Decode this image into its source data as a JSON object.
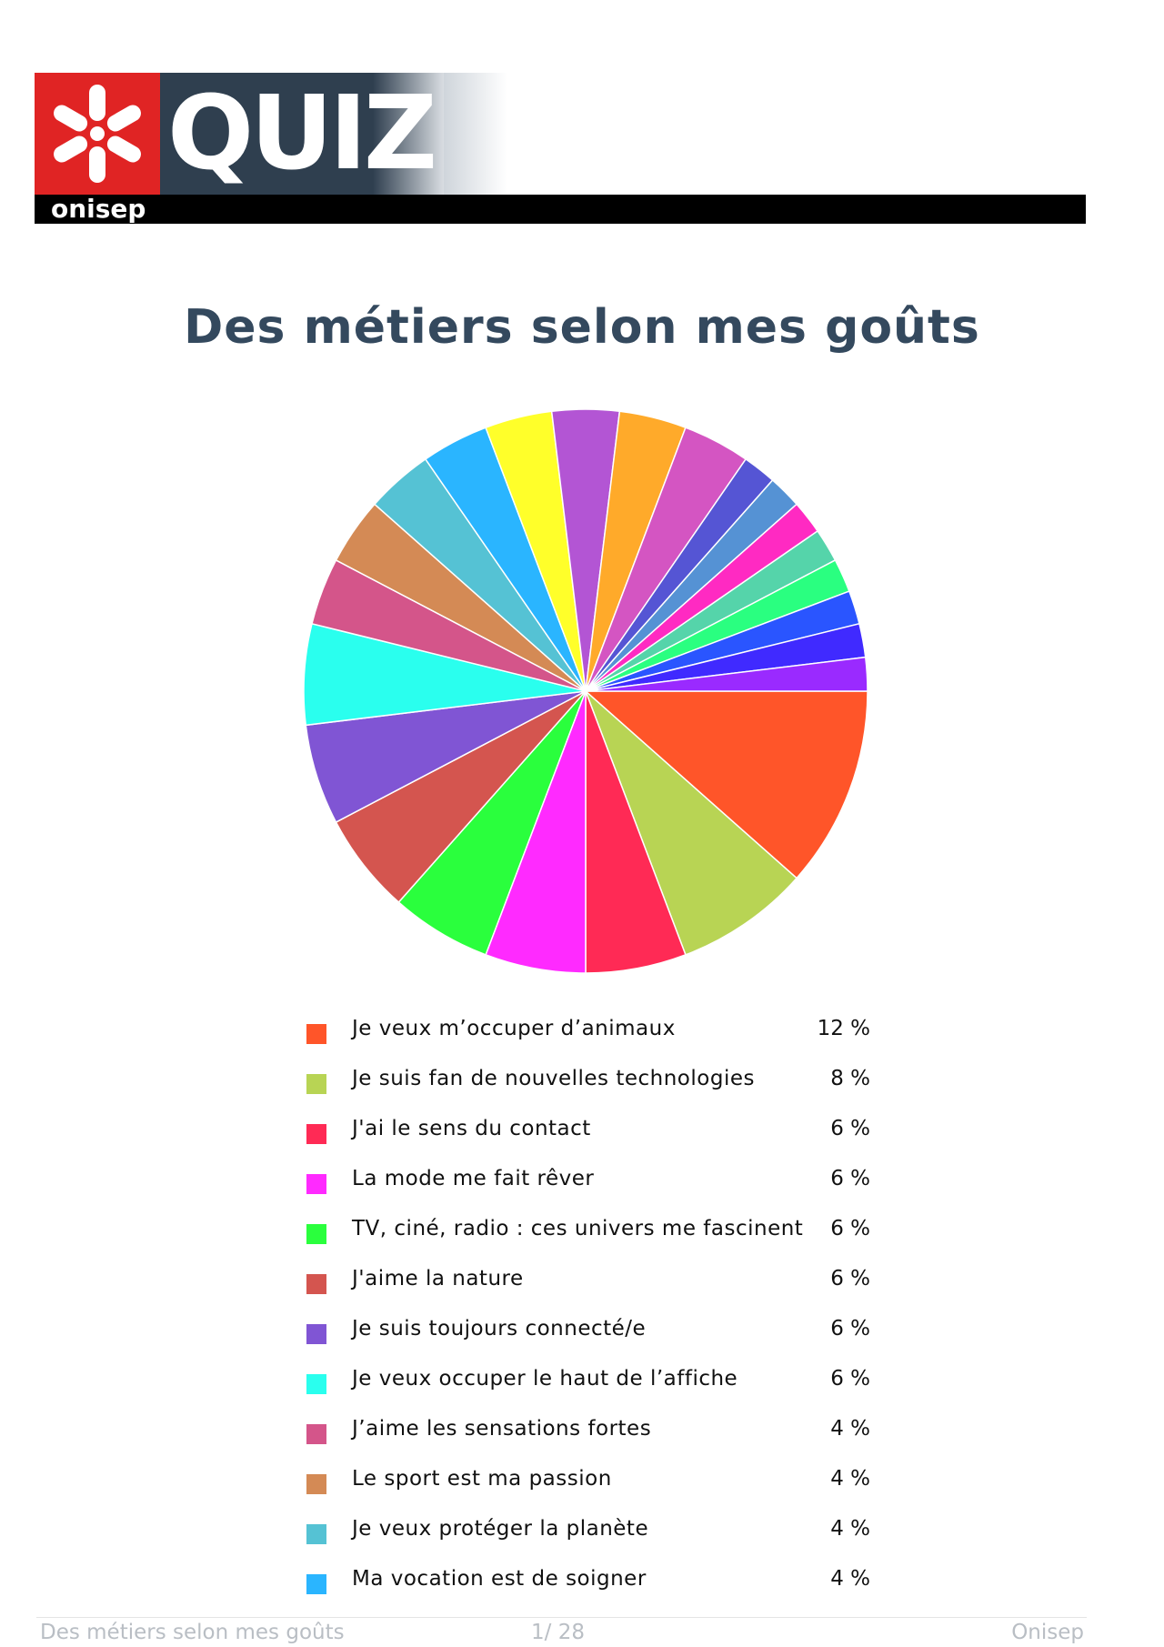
{
  "header": {
    "logo_word": "QUIZ",
    "brand": "onisep",
    "colors": {
      "red": "#e02424",
      "dark": "#2f3f4f"
    }
  },
  "title": "Des métiers selon mes goûts",
  "chart_data": {
    "type": "pie",
    "title": "Des métiers selon mes goûts",
    "unit": "%",
    "slices": [
      {
        "label": "Je veux m’occuper d’animaux",
        "value": 12,
        "color": "#ff5529"
      },
      {
        "label": "Je suis fan de nouvelles technologies",
        "value": 8,
        "color": "#b8d454"
      },
      {
        "label": "J'ai le sens du contact",
        "value": 6,
        "color": "#ff2a55"
      },
      {
        "label": "La mode me fait rêver",
        "value": 6,
        "color": "#ff2aff"
      },
      {
        "label": "TV, ciné, radio : ces univers me fascinent",
        "value": 6,
        "color": "#2aff3d"
      },
      {
        "label": "J'aime la nature",
        "value": 6,
        "color": "#d4554f"
      },
      {
        "label": "Je suis toujours connecté/e",
        "value": 6,
        "color": "#8055d4"
      },
      {
        "label": "Je veux occuper le haut de l’affiche",
        "value": 6,
        "color": "#2affee"
      },
      {
        "label": "J’aime les sensations fortes",
        "value": 4,
        "color": "#d4558a"
      },
      {
        "label": "Le sport est ma passion",
        "value": 4,
        "color": "#d48a55"
      },
      {
        "label": "Je veux protéger la planète",
        "value": 4,
        "color": "#55c2d4"
      },
      {
        "label": "Ma vocation est de soigner",
        "value": 4,
        "color": "#2ab5ff"
      },
      {
        "label": "",
        "value": 4,
        "color": "#ffff2a"
      },
      {
        "label": "",
        "value": 4,
        "color": "#b355d4"
      },
      {
        "label": "",
        "value": 4,
        "color": "#ffaa2a"
      },
      {
        "label": "",
        "value": 4,
        "color": "#d455c2"
      },
      {
        "label": "",
        "value": 2,
        "color": "#5555d4"
      },
      {
        "label": "",
        "value": 2,
        "color": "#5592d4"
      },
      {
        "label": "",
        "value": 2,
        "color": "#ff2ac2"
      },
      {
        "label": "",
        "value": 2,
        "color": "#55d4aa"
      },
      {
        "label": "",
        "value": 2,
        "color": "#2aff80"
      },
      {
        "label": "",
        "value": 2,
        "color": "#2a55ff"
      },
      {
        "label": "",
        "value": 2,
        "color": "#402aff"
      },
      {
        "label": "",
        "value": 2,
        "color": "#9a2aff"
      }
    ],
    "legend": [
      {
        "label": "Je veux m’occuper d’animaux",
        "pct": "12 %",
        "color": "#ff5529"
      },
      {
        "label": "Je suis fan de nouvelles technologies",
        "pct": "8 %",
        "color": "#b8d454"
      },
      {
        "label": "J'ai le sens du contact",
        "pct": "6 %",
        "color": "#ff2a55"
      },
      {
        "label": "La mode me fait rêver",
        "pct": "6 %",
        "color": "#ff2aff"
      },
      {
        "label": "TV, ciné, radio : ces univers me fascinent",
        "pct": "6 %",
        "color": "#2aff3d"
      },
      {
        "label": "J'aime la nature",
        "pct": "6 %",
        "color": "#d4554f"
      },
      {
        "label": "Je suis toujours connecté/e",
        "pct": "6 %",
        "color": "#8055d4"
      },
      {
        "label": "Je veux occuper le haut de l’affiche",
        "pct": "6 %",
        "color": "#2affee"
      },
      {
        "label": "J’aime les sensations fortes",
        "pct": "4 %",
        "color": "#d4558a"
      },
      {
        "label": "Le sport est ma passion",
        "pct": "4 %",
        "color": "#d48a55"
      },
      {
        "label": "Je veux protéger la planète",
        "pct": "4 %",
        "color": "#55c2d4"
      },
      {
        "label": "Ma vocation est de soigner",
        "pct": "4 %",
        "color": "#2ab5ff"
      }
    ]
  },
  "footer": {
    "left": "Des métiers selon mes goûts",
    "page": "1/ 28",
    "right": "Onisep"
  }
}
